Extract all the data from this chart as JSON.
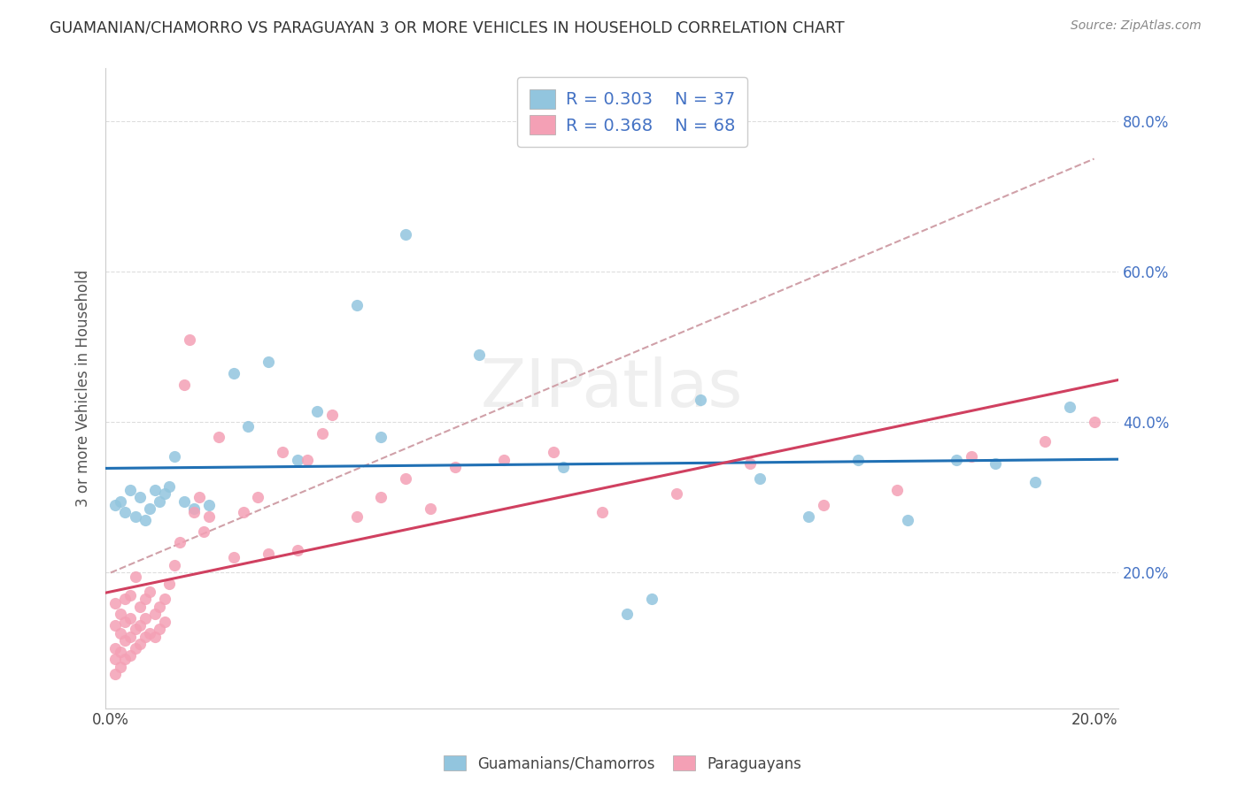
{
  "title": "GUAMANIAN/CHAMORRO VS PARAGUAYAN 3 OR MORE VEHICLES IN HOUSEHOLD CORRELATION CHART",
  "source": "Source: ZipAtlas.com",
  "ylabel": "3 or more Vehicles in Household",
  "blue_color": "#92c5de",
  "pink_color": "#f4a0b5",
  "line_blue": "#2070b4",
  "line_pink": "#d04060",
  "line_dashed_color": "#d0a0a8",
  "xlim_min": -0.001,
  "xlim_max": 0.205,
  "ylim_min": 0.02,
  "ylim_max": 0.87,
  "x_ticks": [
    0.0,
    0.04,
    0.08,
    0.12,
    0.16,
    0.2
  ],
  "x_tick_labels": [
    "0.0%",
    "",
    "",
    "",
    "",
    "20.0%"
  ],
  "y_ticks": [
    0.2,
    0.4,
    0.6,
    0.8
  ],
  "y_tick_labels": [
    "20.0%",
    "40.0%",
    "60.0%",
    "80.0%"
  ],
  "guamanian_x": [
    0.001,
    0.002,
    0.003,
    0.004,
    0.005,
    0.006,
    0.007,
    0.008,
    0.009,
    0.01,
    0.011,
    0.012,
    0.013,
    0.015,
    0.017,
    0.02,
    0.025,
    0.028,
    0.032,
    0.038,
    0.042,
    0.05,
    0.055,
    0.06,
    0.075,
    0.092,
    0.105,
    0.11,
    0.12,
    0.132,
    0.142,
    0.152,
    0.162,
    0.172,
    0.18,
    0.188,
    0.195
  ],
  "guamanian_y": [
    0.29,
    0.295,
    0.28,
    0.31,
    0.275,
    0.3,
    0.27,
    0.285,
    0.31,
    0.295,
    0.305,
    0.315,
    0.355,
    0.295,
    0.285,
    0.29,
    0.465,
    0.395,
    0.48,
    0.35,
    0.415,
    0.555,
    0.38,
    0.65,
    0.49,
    0.34,
    0.145,
    0.165,
    0.43,
    0.325,
    0.275,
    0.35,
    0.27,
    0.35,
    0.345,
    0.32,
    0.42
  ],
  "paraguayan_x": [
    0.001,
    0.001,
    0.001,
    0.001,
    0.001,
    0.002,
    0.002,
    0.002,
    0.002,
    0.003,
    0.003,
    0.003,
    0.003,
    0.004,
    0.004,
    0.004,
    0.004,
    0.005,
    0.005,
    0.005,
    0.006,
    0.006,
    0.006,
    0.007,
    0.007,
    0.007,
    0.008,
    0.008,
    0.009,
    0.009,
    0.01,
    0.01,
    0.011,
    0.011,
    0.012,
    0.013,
    0.014,
    0.015,
    0.016,
    0.017,
    0.018,
    0.019,
    0.02,
    0.022,
    0.025,
    0.027,
    0.03,
    0.032,
    0.035,
    0.038,
    0.04,
    0.043,
    0.045,
    0.05,
    0.055,
    0.06,
    0.065,
    0.07,
    0.08,
    0.09,
    0.1,
    0.115,
    0.13,
    0.145,
    0.16,
    0.175,
    0.19,
    0.2
  ],
  "paraguayan_y": [
    0.065,
    0.085,
    0.1,
    0.13,
    0.16,
    0.075,
    0.095,
    0.12,
    0.145,
    0.085,
    0.11,
    0.135,
    0.165,
    0.09,
    0.115,
    0.14,
    0.17,
    0.1,
    0.125,
    0.195,
    0.105,
    0.13,
    0.155,
    0.115,
    0.14,
    0.165,
    0.12,
    0.175,
    0.115,
    0.145,
    0.125,
    0.155,
    0.135,
    0.165,
    0.185,
    0.21,
    0.24,
    0.45,
    0.51,
    0.28,
    0.3,
    0.255,
    0.275,
    0.38,
    0.22,
    0.28,
    0.3,
    0.225,
    0.36,
    0.23,
    0.35,
    0.385,
    0.41,
    0.275,
    0.3,
    0.325,
    0.285,
    0.34,
    0.35,
    0.36,
    0.28,
    0.305,
    0.345,
    0.29,
    0.31,
    0.355,
    0.375,
    0.4
  ]
}
